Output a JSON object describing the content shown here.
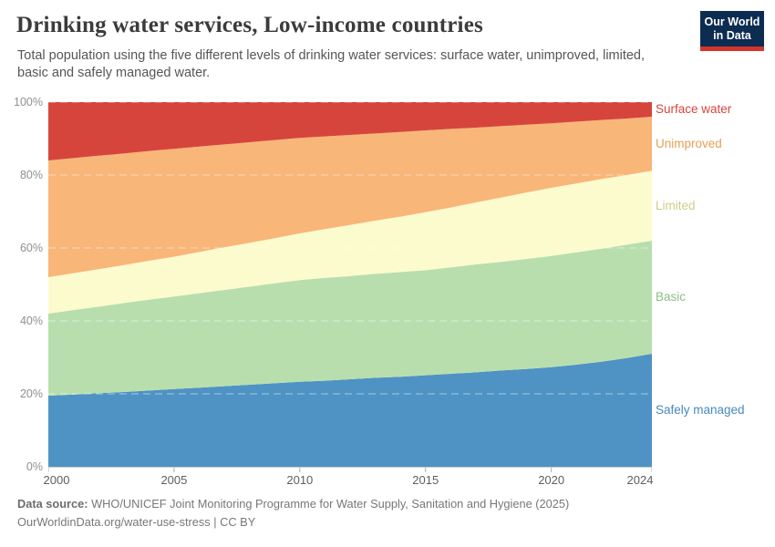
{
  "header": {
    "title": "Drinking water services, Low-income countries",
    "subtitle": "Total population using the five different levels of drinking water services: surface water, unimproved, limited, basic and safely managed water.",
    "logo": {
      "line1": "Our World",
      "line2": "in Data",
      "bg_color": "#0c2c52",
      "stripe_color": "#d2352c"
    }
  },
  "chart_data": {
    "type": "area",
    "stacked": true,
    "unit": "%",
    "title": "Drinking water services, Low-income countries",
    "ylim": [
      0,
      100
    ],
    "grid": true,
    "legend_position": "right",
    "x": [
      2000,
      2001,
      2002,
      2003,
      2004,
      2005,
      2006,
      2007,
      2008,
      2009,
      2010,
      2011,
      2012,
      2013,
      2014,
      2015,
      2016,
      2017,
      2018,
      2019,
      2020,
      2021,
      2022,
      2023,
      2024
    ],
    "x_tick_labels": [
      "2000",
      "2005",
      "2010",
      "2015",
      "2020",
      "2024"
    ],
    "x_tick_years": [
      2000,
      2005,
      2010,
      2015,
      2020,
      2024
    ],
    "y_tick_labels": [
      "0%",
      "20%",
      "40%",
      "60%",
      "80%",
      "100%"
    ],
    "y_tick_values": [
      0,
      20,
      40,
      60,
      80,
      100
    ],
    "series": [
      {
        "name": "Safely managed",
        "color": "#4f93c4",
        "label_color": "#4789ba",
        "values": [
          19.5,
          19.8,
          20.2,
          20.5,
          20.9,
          21.3,
          21.7,
          22.1,
          22.5,
          22.9,
          23.3,
          23.6,
          24.0,
          24.4,
          24.7,
          25.1,
          25.5,
          25.9,
          26.4,
          26.8,
          27.3,
          28.0,
          28.8,
          29.8,
          31.0
        ]
      },
      {
        "name": "Basic",
        "color": "#b9deae",
        "label_color": "#8cc084",
        "values": [
          22.5,
          23.2,
          23.7,
          24.4,
          24.9,
          25.4,
          25.9,
          26.4,
          26.9,
          27.4,
          27.9,
          28.2,
          28.3,
          28.5,
          28.7,
          28.8,
          29.2,
          29.6,
          29.8,
          30.2,
          30.5,
          30.8,
          31.0,
          31.1,
          31.0
        ]
      },
      {
        "name": "Limited",
        "color": "#fcfbcd",
        "label_color": "#cfcd8a",
        "values": [
          10.0,
          10.1,
          10.3,
          10.4,
          10.7,
          10.9,
          11.3,
          11.7,
          12.0,
          12.4,
          12.8,
          13.4,
          14.0,
          14.6,
          15.2,
          15.9,
          16.4,
          17.0,
          17.6,
          18.2,
          18.7,
          18.9,
          19.1,
          19.1,
          19.2
        ]
      },
      {
        "name": "Unimproved",
        "color": "#f9b679",
        "label_color": "#e5a057",
        "values": [
          32.0,
          31.55,
          31.1,
          30.6,
          30.1,
          29.6,
          28.9,
          28.2,
          27.6,
          26.9,
          26.2,
          25.4,
          24.7,
          23.9,
          23.2,
          22.45,
          21.55,
          20.5,
          19.6,
          18.6,
          17.7,
          16.95,
          16.2,
          15.5,
          14.8
        ]
      },
      {
        "name": "Surface water",
        "color": "#d6453c",
        "label_color": "#d6453c",
        "values": [
          16.0,
          15.35,
          14.7,
          14.1,
          13.4,
          12.8,
          12.2,
          11.6,
          11.0,
          10.4,
          9.8,
          9.4,
          9.0,
          8.6,
          8.2,
          7.75,
          7.35,
          7.0,
          6.6,
          6.2,
          5.8,
          5.35,
          4.9,
          4.5,
          4.0
        ]
      }
    ]
  },
  "footer": {
    "source_label": "Data source:",
    "source_text": " WHO/UNICEF Joint Monitoring Programme for Water Supply, Sanitation and Hygiene (2025)",
    "link_line": "OurWorldinData.org/water-use-stress | CC BY"
  }
}
